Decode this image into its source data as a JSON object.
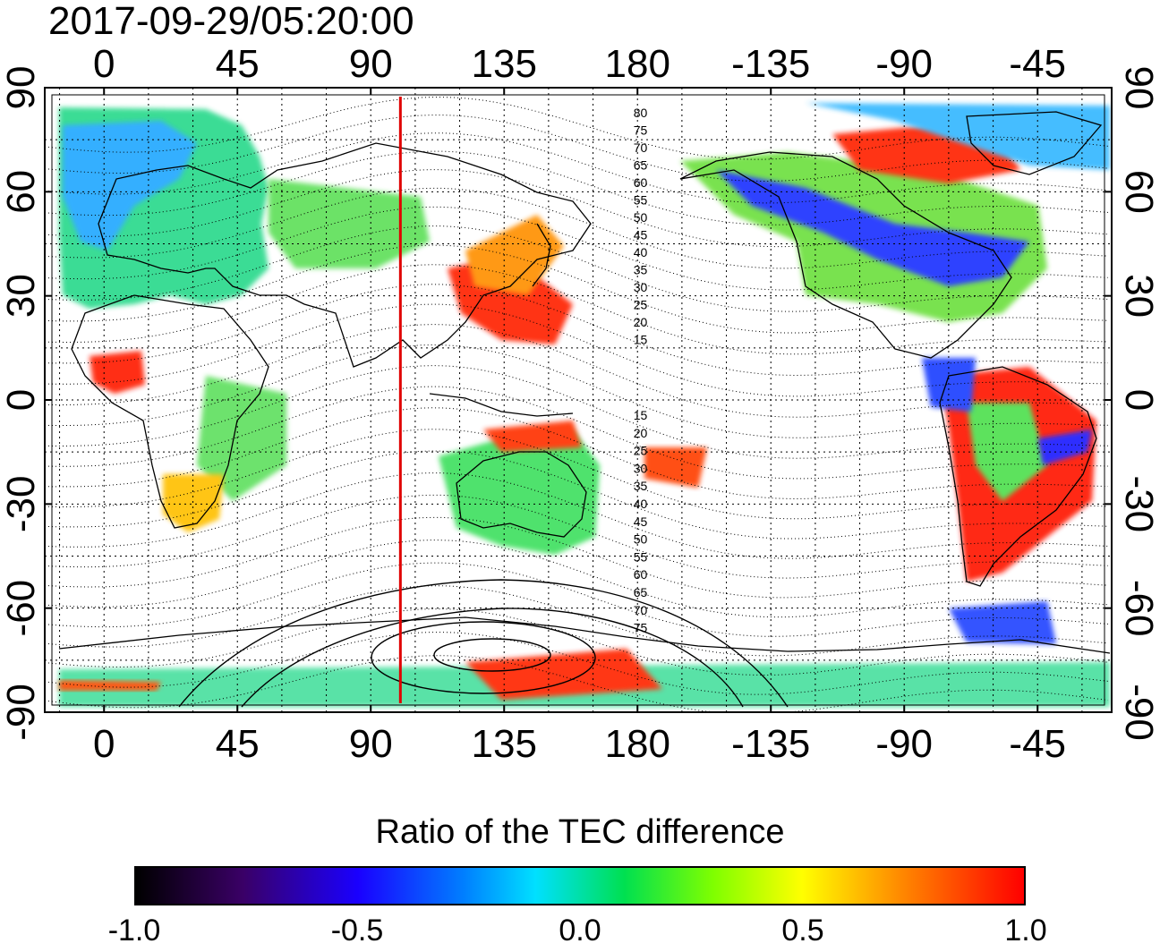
{
  "header": {
    "timestamp": "2017-09-29/05:20:00"
  },
  "map": {
    "lon_ticks_top": [
      "0",
      "45",
      "90",
      "135",
      "180",
      "-135",
      "-90",
      "-45"
    ],
    "lon_ticks_bottom": [
      "0",
      "45",
      "90",
      "135",
      "180",
      "-135",
      "-90",
      "-45"
    ],
    "lat_ticks_left": [
      "90",
      "60",
      "30",
      "0",
      "-30",
      "-60",
      "-90"
    ],
    "lat_ticks_right": [
      "90",
      "60",
      "30",
      "0",
      "-30",
      "-60",
      "-90"
    ],
    "lon_tick_values": [
      0,
      45,
      90,
      135,
      180,
      225,
      270,
      315
    ],
    "lat_tick_values": [
      90,
      60,
      30,
      0,
      -30,
      -60,
      -90
    ],
    "lon_range": [
      -20,
      340
    ],
    "lat_range": [
      -90,
      90
    ],
    "marker_longitude": 100,
    "marker_color": "#e00000",
    "grid": true,
    "contour_labels_north": [
      "80",
      "75",
      "70",
      "65",
      "60",
      "55",
      "50",
      "45",
      "40",
      "35",
      "30",
      "25",
      "20",
      "15"
    ],
    "contour_labels_south": [
      "15",
      "20",
      "25",
      "30",
      "35",
      "40",
      "45",
      "50",
      "55",
      "60",
      "65",
      "70",
      "75"
    ]
  },
  "colorbar": {
    "title": "Ratio of the TEC difference",
    "tick_labels": [
      "-1.0",
      "-0.5",
      "0.0",
      "0.5",
      "1.0"
    ],
    "tick_values": [
      -1.0,
      -0.5,
      0.0,
      0.5,
      1.0
    ],
    "range": [
      -1.0,
      1.0
    ],
    "colors": [
      "#000000",
      "#3a0066",
      "#1a00ff",
      "#0080ff",
      "#00e0ff",
      "#00e050",
      "#7fff00",
      "#ffff00",
      "#ff8000",
      "#ff0000"
    ]
  }
}
